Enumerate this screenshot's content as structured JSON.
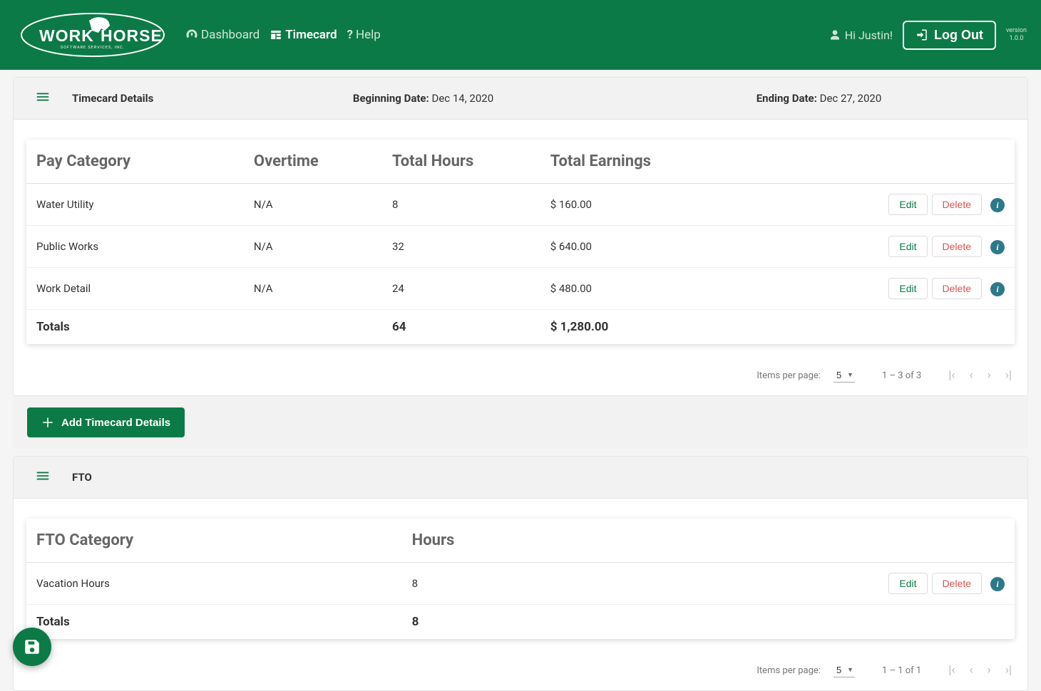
{
  "brand": {
    "line1": "WORK",
    "line2": "HORSE",
    "tag": "SOFTWARE SERVICES, INC."
  },
  "nav": {
    "dashboard": "Dashboard",
    "timecard": "Timecard",
    "help": "Help"
  },
  "user": {
    "greeting": "Hi Justin!"
  },
  "logout": "Log Out",
  "version_label": "version",
  "version": "1.0.0",
  "timecard": {
    "title": "Timecard Details",
    "begin_label": "Beginning Date:",
    "begin_value": "Dec 14, 2020",
    "end_label": "Ending Date:",
    "end_value": "Dec 27, 2020",
    "headers": {
      "cat": "Pay Category",
      "ot": "Overtime",
      "hours": "Total Hours",
      "earn": "Total Earnings"
    },
    "rows": [
      {
        "cat": "Water Utility",
        "ot": "N/A",
        "hours": "8",
        "earn": "$ 160.00"
      },
      {
        "cat": "Public Works",
        "ot": "N/A",
        "hours": "32",
        "earn": "$ 640.00"
      },
      {
        "cat": "Work Detail",
        "ot": "N/A",
        "hours": "24",
        "earn": "$ 480.00"
      }
    ],
    "totals_label": "Totals",
    "totals_hours": "64",
    "totals_earn": "$ 1,280.00",
    "paginator": {
      "ipp_label": "Items per page:",
      "ipp_value": "5",
      "range": "1 – 3 of 3"
    },
    "add_label": "Add Timecard Details"
  },
  "fto": {
    "title": "FTO",
    "headers": {
      "cat": "FTO Category",
      "hours": "Hours"
    },
    "rows": [
      {
        "cat": "Vacation Hours",
        "hours": "8"
      }
    ],
    "totals_label": "Totals",
    "totals_hours": "8",
    "paginator": {
      "ipp_label": "Items per page:",
      "ipp_value": "5",
      "range": "1 – 1 of 1"
    }
  },
  "buttons": {
    "edit": "Edit",
    "delete": "Delete"
  }
}
